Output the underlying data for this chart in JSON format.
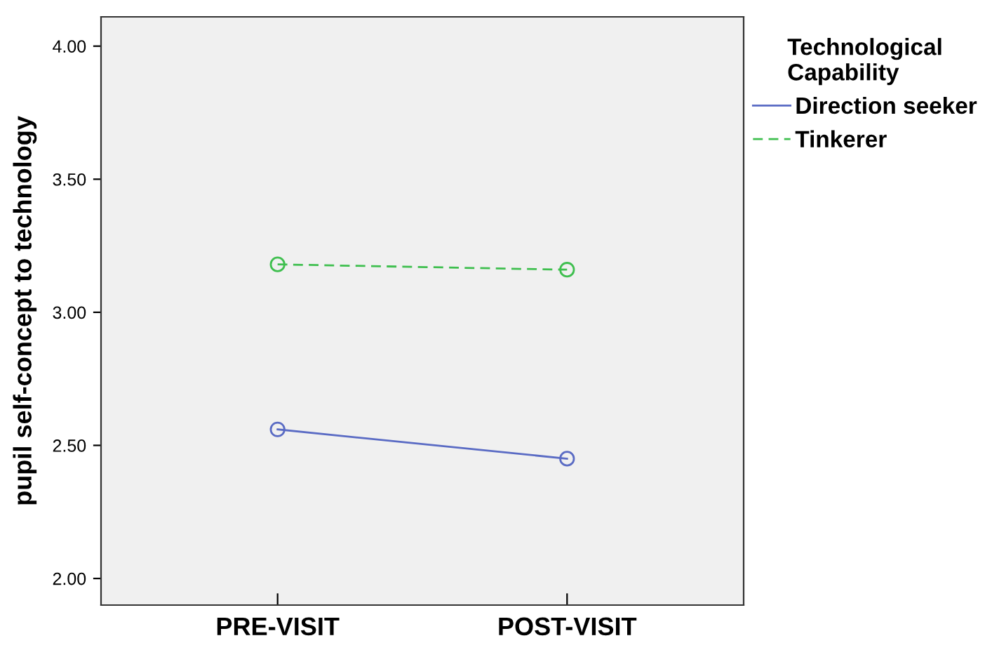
{
  "chart_data": {
    "type": "line",
    "ylabel": "pupil self-concept to technology",
    "legend_title": "Technological\nCapability",
    "categories": [
      "PRE-VISIT",
      "POST-VISIT"
    ],
    "series": [
      {
        "name": "Direction seeker",
        "color": "#5a6bc4",
        "values": [
          2.56,
          2.45
        ],
        "line_style": "solid"
      },
      {
        "name": "Tinkerer",
        "color": "#3fbf4f",
        "values": [
          3.18,
          3.16
        ],
        "line_style": "dashed"
      }
    ],
    "ylim": [
      1.9,
      4.11
    ],
    "yticks": [
      {
        "value": 2,
        "label": "2.00"
      },
      {
        "value": 2.5,
        "label": "2.50"
      },
      {
        "value": 3,
        "label": "3.00"
      },
      {
        "value": 3.5,
        "label": "3.50"
      },
      {
        "value": 4,
        "label": "4.00"
      }
    ],
    "grid": false,
    "legend": "top right",
    "marker": "circle"
  }
}
